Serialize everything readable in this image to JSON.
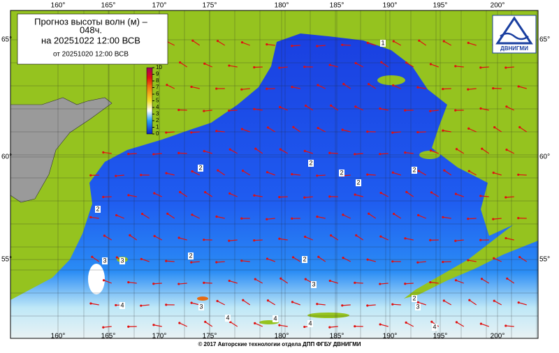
{
  "title": {
    "line1": "Прогноз высоты волн (м) –",
    "line2": "048ч.",
    "line3": "на 20251022 12:00 ВСВ",
    "line4": "от 20251020 12:00 ВСВ"
  },
  "colorbar": {
    "ticks": [
      10,
      9,
      8,
      7,
      6,
      5,
      4,
      3,
      2,
      1,
      0
    ]
  },
  "lon_labels": [
    "160°",
    "165°",
    "170°",
    "175°",
    "180°",
    "185°",
    "190°",
    "195°",
    "200°"
  ],
  "lat_labels": [
    "65°",
    "60°",
    "55°"
  ],
  "contour_labels": [
    "1",
    "2",
    "2",
    "2",
    "2",
    "2",
    "2",
    "2",
    "2",
    "3",
    "3",
    "3",
    "4",
    "3",
    "2",
    "3",
    "4",
    "4",
    "4",
    "4"
  ],
  "logo": "ДВНИГМИ",
  "footer": "© 2017 Авторские технологии отдела ДПП ФГБУ ДВНИГМИ"
}
